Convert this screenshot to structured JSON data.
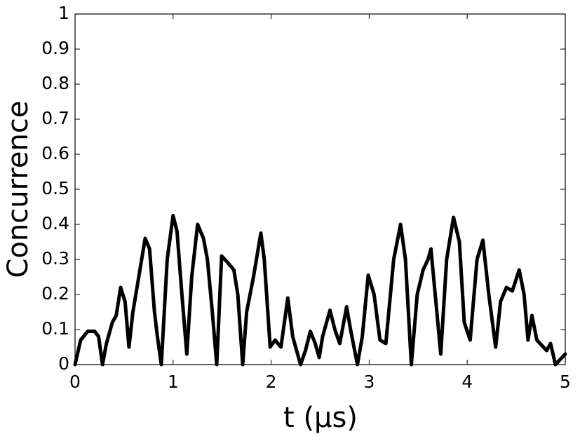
{
  "chart_data": {
    "type": "line",
    "xlabel": "t (μs)",
    "ylabel": "Concurrence",
    "color": "#000000",
    "x": [
      0,
      0.057,
      0.13,
      0.2,
      0.24,
      0.28,
      0.32,
      0.38,
      0.42,
      0.465,
      0.51,
      0.55,
      0.59,
      0.65,
      0.715,
      0.76,
      0.81,
      0.84,
      0.88,
      0.94,
      1.0,
      1.04,
      1.09,
      1.14,
      1.19,
      1.25,
      1.31,
      1.35,
      1.4,
      1.445,
      1.495,
      1.56,
      1.62,
      1.66,
      1.71,
      1.75,
      1.82,
      1.895,
      1.93,
      1.99,
      2.04,
      2.1,
      2.17,
      2.22,
      2.3,
      2.35,
      2.4,
      2.45,
      2.49,
      2.525,
      2.6,
      2.65,
      2.7,
      2.77,
      2.81,
      2.88,
      2.93,
      2.99,
      3.05,
      3.11,
      3.17,
      3.25,
      3.32,
      3.37,
      3.43,
      3.49,
      3.55,
      3.6,
      3.63,
      3.68,
      3.73,
      3.79,
      3.86,
      3.92,
      3.97,
      4.03,
      4.1,
      4.16,
      4.22,
      4.29,
      4.34,
      4.4,
      4.46,
      4.53,
      4.58,
      4.62,
      4.66,
      4.71,
      4.81,
      4.85,
      4.9,
      5.0
    ],
    "values": [
      0,
      0.07,
      0.095,
      0.095,
      0.08,
      0,
      0.06,
      0.12,
      0.14,
      0.22,
      0.18,
      0.05,
      0.15,
      0.25,
      0.36,
      0.33,
      0.15,
      0.08,
      0,
      0.3,
      0.425,
      0.38,
      0.2,
      0.03,
      0.25,
      0.4,
      0.36,
      0.3,
      0.15,
      0,
      0.31,
      0.29,
      0.27,
      0.2,
      0,
      0.15,
      0.25,
      0.375,
      0.3,
      0.05,
      0.07,
      0.05,
      0.19,
      0.08,
      0,
      0.04,
      0.095,
      0.06,
      0.02,
      0.08,
      0.155,
      0.1,
      0.06,
      0.165,
      0.1,
      0,
      0.08,
      0.255,
      0.2,
      0.07,
      0.06,
      0.3,
      0.4,
      0.3,
      0,
      0.2,
      0.27,
      0.3,
      0.33,
      0.18,
      0.03,
      0.3,
      0.42,
      0.35,
      0.12,
      0.07,
      0.3,
      0.355,
      0.2,
      0.05,
      0.18,
      0.22,
      0.21,
      0.27,
      0.2,
      0.07,
      0.14,
      0.07,
      0.04,
      0.06,
      0,
      0.03
    ],
    "xlim": [
      0,
      5
    ],
    "xticks": [
      0,
      1,
      2,
      3,
      4,
      5
    ],
    "ylim": [
      0,
      1
    ],
    "yticks": [
      0,
      0.1,
      0.2,
      0.3,
      0.4,
      0.5,
      0.6,
      0.7,
      0.8,
      0.9,
      1
    ]
  }
}
